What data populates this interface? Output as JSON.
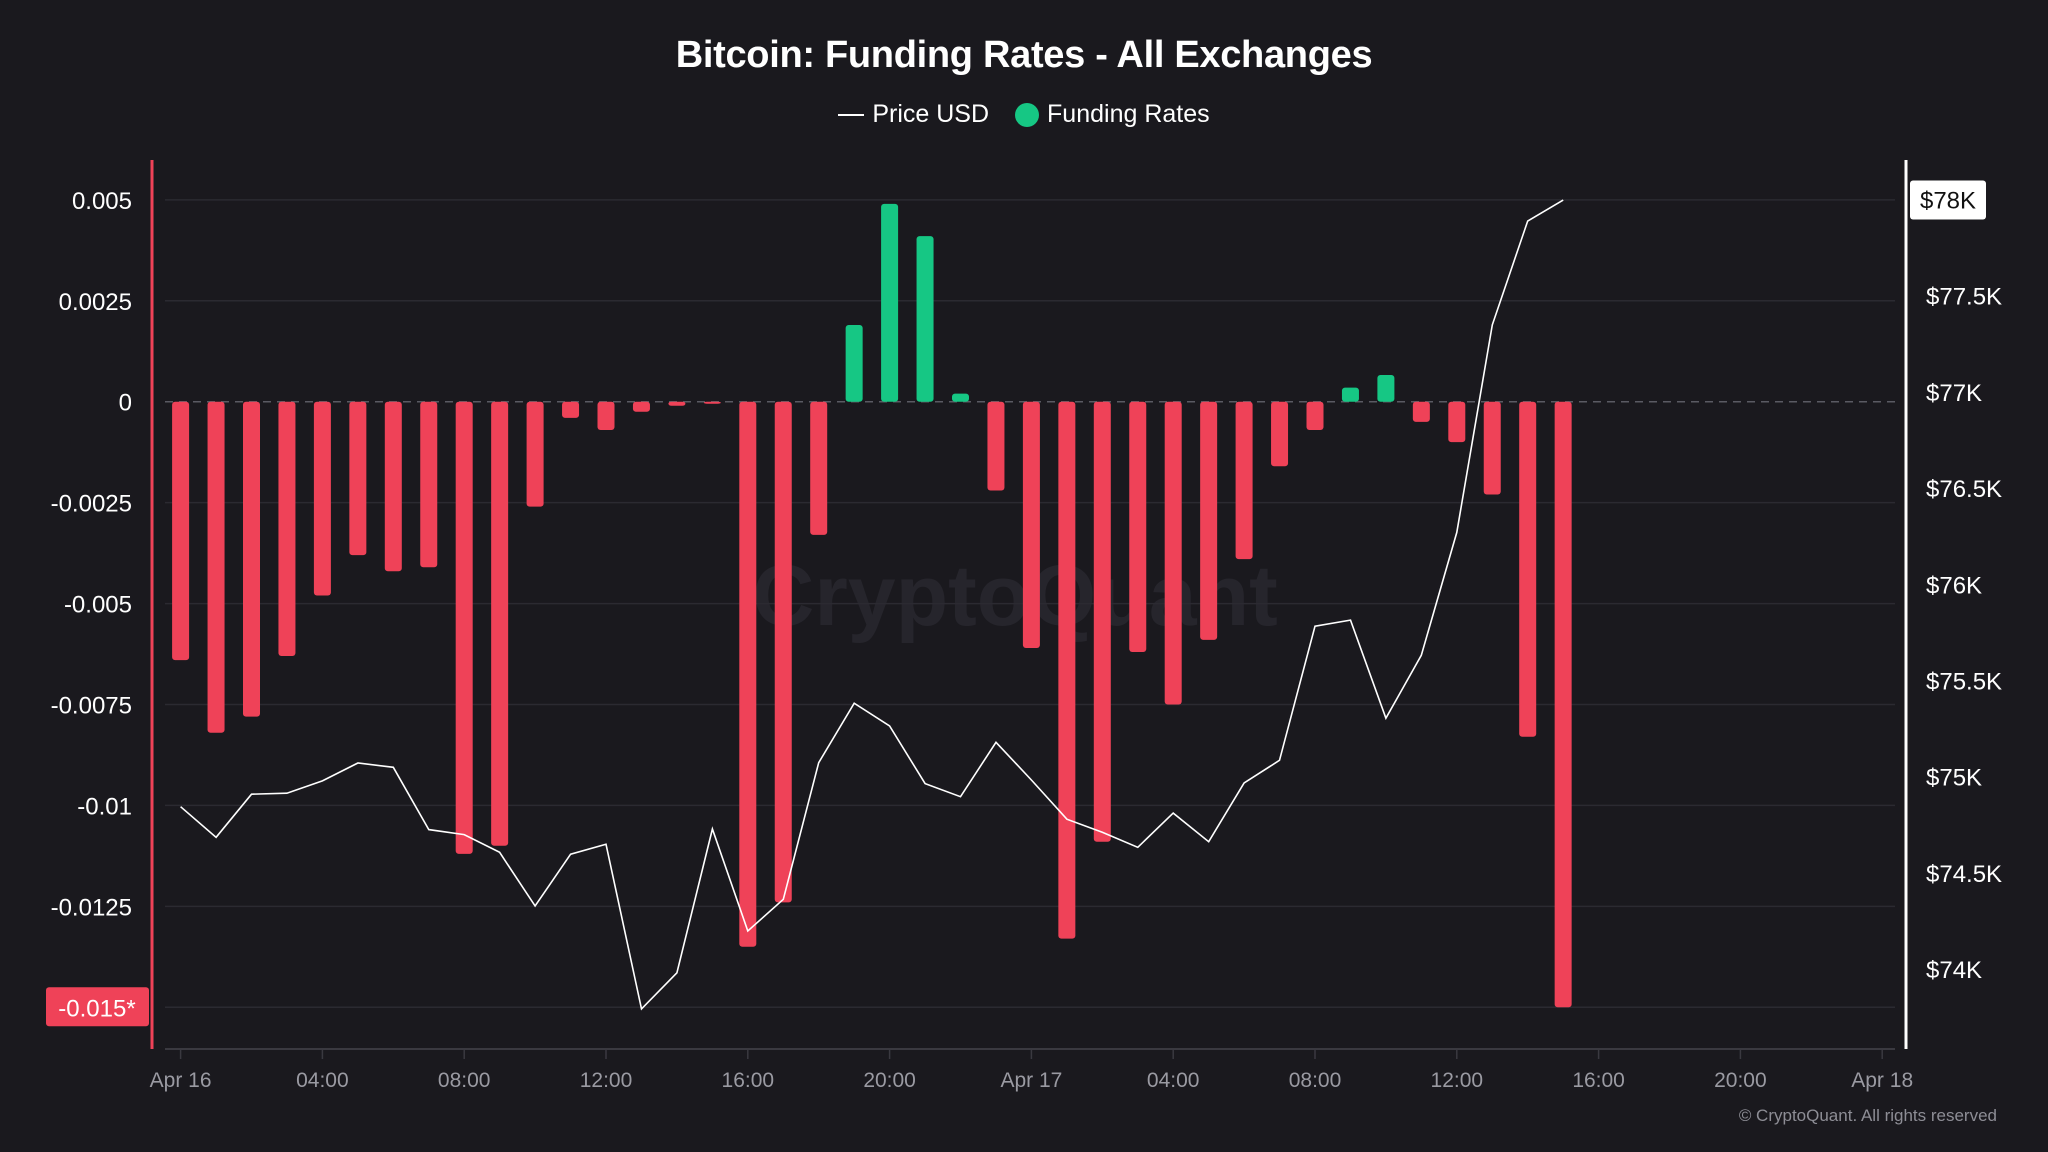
{
  "chart_data": {
    "type": "bar",
    "title": "Bitcoin: Funding Rates - All Exchanges",
    "legend": {
      "placement": "top-center",
      "items": [
        {
          "name": "Price USD",
          "marker": "line",
          "color": "#ffffff"
        },
        {
          "name": "Funding Rates",
          "marker": "dot",
          "color": "#16c784"
        }
      ]
    },
    "x": {
      "start": "Apr 16 00:00",
      "interval": "1h",
      "range_hours": [
        0,
        48
      ],
      "ticks": [
        {
          "hour": 0,
          "label": "Apr 16"
        },
        {
          "hour": 4,
          "label": "04:00"
        },
        {
          "hour": 8,
          "label": "08:00"
        },
        {
          "hour": 12,
          "label": "12:00"
        },
        {
          "hour": 16,
          "label": "16:00"
        },
        {
          "hour": 20,
          "label": "20:00"
        },
        {
          "hour": 24,
          "label": "Apr 17"
        },
        {
          "hour": 28,
          "label": "04:00"
        },
        {
          "hour": 32,
          "label": "08:00"
        },
        {
          "hour": 36,
          "label": "12:00"
        },
        {
          "hour": 40,
          "label": "16:00"
        },
        {
          "hour": 44,
          "label": "20:00"
        },
        {
          "hour": 48,
          "label": "Apr 18"
        }
      ]
    },
    "y_left": {
      "label": "Funding Rates",
      "ylim": [
        -0.016,
        0.0058
      ],
      "ticks": [
        {
          "value": 0.005,
          "label": "0.005"
        },
        {
          "value": 0.0025,
          "label": "0.0025"
        },
        {
          "value": 0,
          "label": "0"
        },
        {
          "value": -0.0025,
          "label": "-0.0025"
        },
        {
          "value": -0.005,
          "label": "-0.005"
        },
        {
          "value": -0.0075,
          "label": "-0.0075"
        },
        {
          "value": -0.01,
          "label": "-0.01"
        },
        {
          "value": -0.0125,
          "label": "-0.0125"
        }
      ],
      "highlight": {
        "value": -0.015,
        "label": "-0.015*",
        "color": "#ef4258"
      }
    },
    "y_right": {
      "label": "Price USD",
      "ticks": [
        {
          "value": 77500,
          "label": "$77.5K"
        },
        {
          "value": 77000,
          "label": "$77K"
        },
        {
          "value": 76500,
          "label": "$76.5K"
        },
        {
          "value": 76000,
          "label": "$76K"
        },
        {
          "value": 75500,
          "label": "$75.5K"
        },
        {
          "value": 75000,
          "label": "$75K"
        },
        {
          "value": 74500,
          "label": "$74.5K"
        },
        {
          "value": 74000,
          "label": "$74K"
        }
      ],
      "highlight": {
        "value": 78000,
        "label": "$78K"
      }
    },
    "grid": true,
    "zero_line": "dashed",
    "colors": {
      "positive": "#16c784",
      "negative": "#ef4258",
      "price_line": "#ffffff"
    },
    "series": [
      {
        "name": "Funding Rates",
        "type": "bar",
        "axis": "left",
        "values": [
          -0.0064,
          -0.0082,
          -0.0078,
          -0.0063,
          -0.0048,
          -0.0038,
          -0.0042,
          -0.0041,
          -0.0112,
          -0.011,
          -0.0026,
          -0.0004,
          -0.0007,
          -0.00025,
          -0.0001,
          -3e-05,
          -0.0135,
          -0.0124,
          -0.0033,
          0.0019,
          0.0049,
          0.0041,
          0.0002,
          -0.0022,
          -0.0061,
          -0.0133,
          -0.0109,
          -0.0062,
          -0.0075,
          -0.0059,
          -0.0039,
          -0.0016,
          -0.0007,
          0.00035,
          0.00066,
          -0.0005,
          -0.001,
          -0.0023,
          -0.0083,
          -0.015
        ]
      },
      {
        "name": "Price USD",
        "type": "line",
        "axis": "right",
        "values": [
          74844,
          74685,
          74909,
          74914,
          74978,
          75071,
          75049,
          74725,
          74699,
          74607,
          74328,
          74597,
          74649,
          73793,
          73981,
          74728,
          74198,
          74363,
          75073,
          75382,
          75264,
          74964,
          74896,
          75179,
          74983,
          74779,
          74711,
          74633,
          74811,
          74662,
          74967,
          75085,
          75782,
          75814,
          75304,
          75631,
          76270,
          77348,
          77888,
          77997
        ]
      }
    ],
    "watermark": "CryptoQuant",
    "footer": "© CryptoQuant. All rights reserved"
  }
}
